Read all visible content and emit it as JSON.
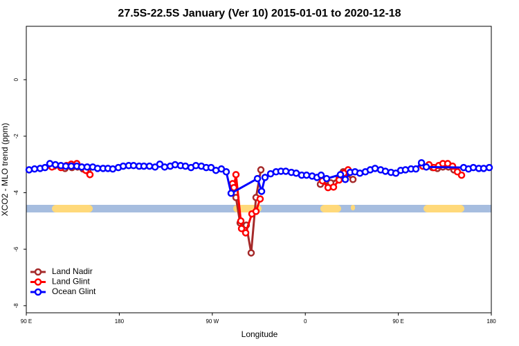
{
  "chart_data": {
    "type": "line",
    "title": "27.5S-22.5S January (Ver 10)   2015-01-01 to 2020-12-18",
    "x_label": "Longitude",
    "y_label": "XCO2 - MLO trend (ppm)",
    "xlim": [
      90,
      540
    ],
    "ylim": [
      -8.25,
      1.89
    ],
    "xticks": [
      {
        "value": 90,
        "label": "90 E"
      },
      {
        "value": 180,
        "label": "180"
      },
      {
        "value": 270,
        "label": "90 W"
      },
      {
        "value": 360,
        "label": "0"
      },
      {
        "value": 450,
        "label": "90 E"
      },
      {
        "value": 540,
        "label": "180"
      }
    ],
    "yticks": [
      0,
      -2,
      -4,
      -6,
      -8
    ],
    "legend": "bottom-left",
    "series": [
      {
        "name": "Land Nadir",
        "color": "#a52a2a",
        "x": [
          116.8,
          127.5,
          134.2,
          139.6,
          144.9,
          149.6,
          null,
          292.9,
          296.9,
          302.9,
          307.6,
          312.3,
          317.0,
          null,
          374.6,
          384.6,
          392.7,
          396.7,
          406.1,
          null,
          483.1,
          487.8,
          493.1,
          498.5,
          503.8
        ],
        "values": [
          -3.06,
          -3.14,
          -3.11,
          -3.09,
          -3.16,
          -3.24,
          null,
          -4.17,
          -5.07,
          -5.15,
          -6.13,
          -4.17,
          -3.19,
          null,
          -3.7,
          -3.65,
          -3.5,
          -3.26,
          -3.53,
          null,
          -3.11,
          -3.14,
          -3.09,
          -3.09,
          -3.19
        ]
      },
      {
        "name": "Land Glint",
        "color": "#ff0000",
        "x": [
          114.8,
          123.5,
          128.8,
          133.5,
          138.9,
          143.6,
          147.6,
          151.6,
          null,
          289.6,
          290.9,
          292.9,
          297.6,
          298.3,
          302.3,
          308.3,
          312.3,
          316.3,
          null,
          376.6,
          382.0,
          387.3,
          392.7,
          397.4,
          401.4,
          null,
          473.7,
          479.7,
          484.4,
          489.1,
          493.1,
          497.8,
          502.5,
          507.2,
          511.2
        ],
        "values": [
          -3.09,
          -3.11,
          -3.04,
          -2.99,
          -2.97,
          -3.09,
          -3.21,
          -3.36,
          null,
          -3.68,
          -3.82,
          -3.36,
          -5.0,
          -5.27,
          -5.42,
          -4.75,
          -4.66,
          -4.22,
          null,
          -3.58,
          -3.82,
          -3.8,
          -3.55,
          -3.31,
          -3.19,
          null,
          -3.06,
          -3.01,
          -3.11,
          -3.04,
          -2.97,
          -2.97,
          -3.06,
          -3.26,
          -3.38
        ]
      },
      {
        "name": "Ocean Glint",
        "color": "#0000ff",
        "x": [
          92.7,
          98.0,
          103.4,
          108.1,
          112.8,
          118.2,
          123.5,
          128.2,
          133.5,
          138.9,
          143.6,
          148.9,
          154.3,
          159.0,
          164.3,
          169.0,
          173.7,
          179.1,
          183.8,
          189.1,
          193.8,
          199.2,
          203.8,
          209.2,
          214.6,
          219.2,
          223.9,
          229.3,
          234.0,
          239.3,
          244.0,
          249.4,
          254.1,
          259.4,
          264.1,
          268.8,
          273.5,
          278.8,
          283.5,
          288.2,
          313.7,
          317.7,
          321.0,
          326.4,
          331.7,
          336.4,
          341.1,
          346.5,
          351.2,
          356.5,
          361.2,
          366.6,
          371.3,
          375.3,
          380.6,
          394.0,
          398.7,
          403.4,
          408.1,
          412.8,
          418.1,
          422.8,
          427.5,
          432.9,
          437.5,
          442.9,
          447.6,
          452.3,
          456.9,
          462.3,
          467.0,
          472.4,
          477.1,
          513.2,
          517.9,
          522.6,
          527.9,
          532.6,
          538.0
        ],
        "values": [
          -3.19,
          -3.16,
          -3.14,
          -3.11,
          -2.97,
          -3.01,
          -3.04,
          -3.06,
          -3.06,
          -3.06,
          -3.09,
          -3.09,
          -3.09,
          -3.14,
          -3.14,
          -3.14,
          -3.16,
          -3.11,
          -3.06,
          -3.04,
          -3.04,
          -3.06,
          -3.06,
          -3.06,
          -3.09,
          -2.99,
          -3.09,
          -3.06,
          -3.01,
          -3.04,
          -3.06,
          -3.11,
          -3.04,
          -3.06,
          -3.11,
          -3.11,
          -3.21,
          -3.16,
          -3.26,
          -4.02,
          -3.5,
          -3.95,
          -3.46,
          -3.33,
          -3.26,
          -3.24,
          -3.24,
          -3.28,
          -3.31,
          -3.38,
          -3.38,
          -3.41,
          -3.46,
          -3.38,
          -3.5,
          -3.36,
          -3.53,
          -3.28,
          -3.26,
          -3.31,
          -3.26,
          -3.19,
          -3.14,
          -3.19,
          -3.24,
          -3.28,
          -3.31,
          -3.21,
          -3.19,
          -3.16,
          -3.16,
          -2.94,
          -3.09,
          -3.11,
          -3.16,
          -3.11,
          -3.14,
          -3.14,
          -3.11
        ]
      }
    ]
  }
}
